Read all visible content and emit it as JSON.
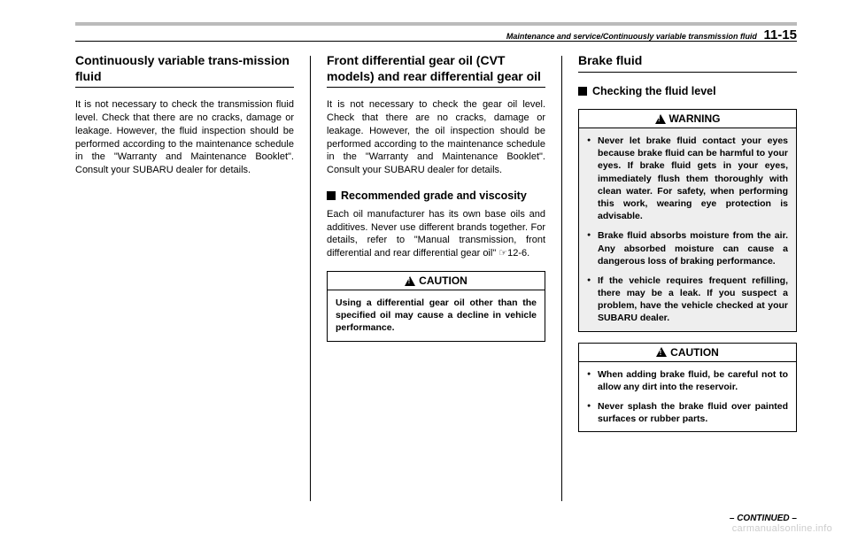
{
  "header": {
    "breadcrumb": "Maintenance and service/Continuously variable transmission fluid",
    "page_number": "11-15"
  },
  "col1": {
    "title": "Continuously variable trans-mission fluid",
    "body": "It is not necessary to check the transmission fluid level. Check that there are no cracks, damage or leakage. However, the fluid inspection should be performed according to the maintenance schedule in the \"Warranty and Maintenance Booklet\". Consult your SUBARU dealer for details."
  },
  "col2": {
    "title": "Front differential gear oil (CVT models) and rear differential gear oil",
    "body": "It is not necessary to check the gear oil level. Check that there are no cracks, damage or leakage. However, the oil inspection should be performed according to the maintenance schedule in the \"Warranty and Maintenance Booklet\". Consult your SUBARU dealer for details.",
    "sub_heading": "Recommended grade and viscosity",
    "sub_body": "Each oil manufacturer has its own base oils and additives. Never use different brands together. For details, refer to \"Manual transmission, front differential and rear differential gear oil\" ☞12-6.",
    "caution_label": "CAUTION",
    "caution_body": "Using a differential gear oil other than the specified oil may cause a decline in vehicle performance."
  },
  "col3": {
    "title": "Brake fluid",
    "sub_heading": "Checking the fluid level",
    "warning_label": "WARNING",
    "warning_items": [
      "Never let brake fluid contact your eyes because brake fluid can be harmful to your eyes. If brake fluid gets in your eyes, immediately flush them thoroughly with clean water. For safety, when performing this work, wearing eye protection is advisable.",
      "Brake fluid absorbs moisture from the air. Any absorbed moisture can cause a dangerous loss of braking performance.",
      "If the vehicle requires frequent refilling, there may be a leak. If you suspect a problem, have the vehicle checked at your SUBARU dealer."
    ],
    "caution_label": "CAUTION",
    "caution_items": [
      "When adding brake fluid, be careful not to allow any dirt into the reservoir.",
      "Never splash the brake fluid over painted surfaces or rubber parts."
    ]
  },
  "continued": "– CONTINUED –",
  "watermark": "carmanualsonline.info",
  "colors": {
    "header_rule": "#bbbbbb",
    "text": "#000000",
    "shaded_bg": "#eeeeee",
    "watermark": "#cccccc"
  }
}
